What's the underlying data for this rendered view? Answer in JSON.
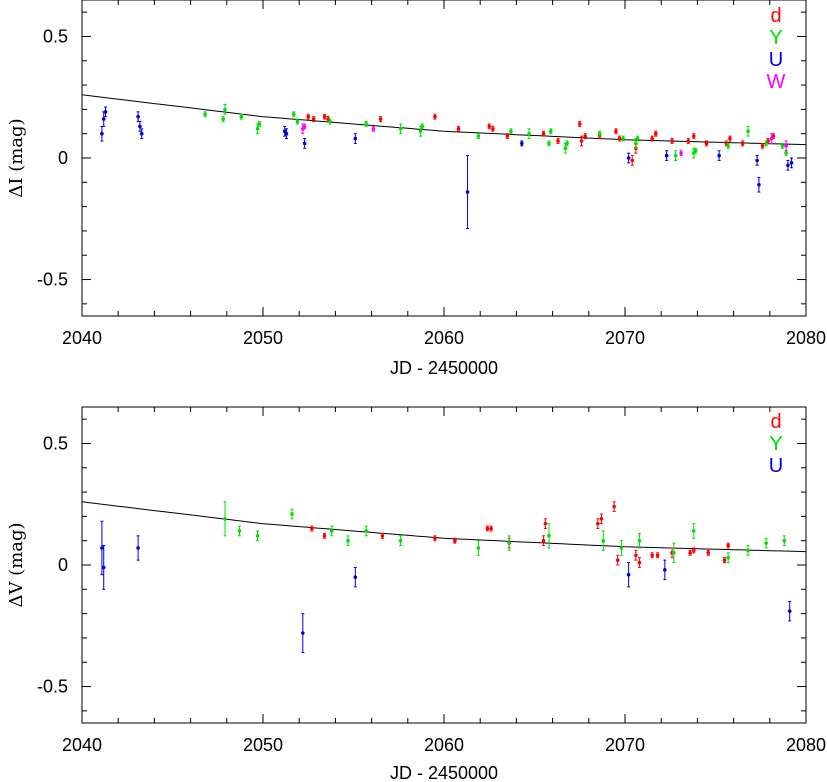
{
  "chart_data": [
    {
      "type": "scatter",
      "xlabel": "JD - 2450000",
      "ylabel": "ΔI (mag)",
      "xlim": [
        2040,
        2080
      ],
      "ylim": [
        -0.65,
        0.65
      ],
      "xticks": [
        "2040",
        "2050",
        "2060",
        "2070",
        "2080"
      ],
      "yticks": [
        "0.5",
        "0",
        "-0.5"
      ],
      "ytick_values": [
        0.5,
        0,
        -0.5
      ],
      "grid": false,
      "legend_position": "top-right",
      "fit_line": {
        "x": [
          2040,
          2050,
          2060,
          2070,
          2080
        ],
        "y": [
          0.26,
          0.17,
          0.11,
          0.075,
          0.055
        ]
      },
      "series": [
        {
          "name": "d",
          "color": "#ff0000",
          "points": [
            [
              2052.5,
              0.17,
              0.01
            ],
            [
              2052.8,
              0.16,
              0.01
            ],
            [
              2053.4,
              0.17,
              0.01
            ],
            [
              2053.6,
              0.16,
              0.01
            ],
            [
              2056.5,
              0.16,
              0.01
            ],
            [
              2059.5,
              0.17,
              0.01
            ],
            [
              2060.8,
              0.12,
              0.01
            ],
            [
              2062.5,
              0.13,
              0.01
            ],
            [
              2062.7,
              0.12,
              0.01
            ],
            [
              2063.5,
              0.09,
              0.01
            ],
            [
              2065.5,
              0.1,
              0.01
            ],
            [
              2066.3,
              0.07,
              0.01
            ],
            [
              2067.5,
              0.14,
              0.01
            ],
            [
              2067.6,
              0.07,
              0.02
            ],
            [
              2067.8,
              0.09,
              0.01
            ],
            [
              2068.6,
              0.09,
              0.01
            ],
            [
              2069.5,
              0.11,
              0.01
            ],
            [
              2069.7,
              0.08,
              0.01
            ],
            [
              2070.4,
              -0.01,
              0.02
            ],
            [
              2070.6,
              0.04,
              0.02
            ],
            [
              2071.5,
              0.08,
              0.01
            ],
            [
              2071.7,
              0.1,
              0.01
            ],
            [
              2072.6,
              0.07,
              0.01
            ],
            [
              2073.5,
              0.07,
              0.01
            ],
            [
              2073.8,
              0.09,
              0.01
            ],
            [
              2074.5,
              0.06,
              0.01
            ],
            [
              2075.6,
              0.06,
              0.01
            ],
            [
              2075.8,
              0.08,
              0.01
            ],
            [
              2076.5,
              0.06,
              0.01
            ],
            [
              2077.6,
              0.05,
              0.01
            ],
            [
              2077.9,
              0.07,
              0.01
            ],
            [
              2078.2,
              0.09,
              0.01
            ]
          ]
        },
        {
          "name": "Y",
          "color": "#00e000",
          "points": [
            [
              2046.8,
              0.18,
              0.01
            ],
            [
              2047.8,
              0.16,
              0.01
            ],
            [
              2047.9,
              0.2,
              0.02
            ],
            [
              2048.8,
              0.17,
              0.01
            ],
            [
              2049.7,
              0.12,
              0.02
            ],
            [
              2049.8,
              0.14,
              0.01
            ],
            [
              2051.7,
              0.18,
              0.01
            ],
            [
              2051.9,
              0.15,
              0.01
            ],
            [
              2053.7,
              0.15,
              0.01
            ],
            [
              2055.7,
              0.14,
              0.01
            ],
            [
              2057.6,
              0.12,
              0.02
            ],
            [
              2058.7,
              0.11,
              0.02
            ],
            [
              2058.8,
              0.13,
              0.01
            ],
            [
              2061.9,
              0.09,
              0.01
            ],
            [
              2063.7,
              0.11,
              0.01
            ],
            [
              2064.7,
              0.1,
              0.02
            ],
            [
              2065.8,
              0.06,
              0.01
            ],
            [
              2065.9,
              0.11,
              0.01
            ],
            [
              2066.7,
              0.04,
              0.02
            ],
            [
              2066.8,
              0.06,
              0.01
            ],
            [
              2068.6,
              0.1,
              0.01
            ],
            [
              2069.9,
              0.08,
              0.01
            ],
            [
              2070.6,
              0.06,
              0.02
            ],
            [
              2070.7,
              0.08,
              0.01
            ],
            [
              2072.8,
              0.01,
              0.02
            ],
            [
              2073.8,
              0.02,
              0.02
            ],
            [
              2073.9,
              0.03,
              0.01
            ],
            [
              2075.7,
              0.05,
              0.01
            ],
            [
              2076.8,
              0.11,
              0.02
            ],
            [
              2077.8,
              0.06,
              0.01
            ],
            [
              2078.7,
              0.05,
              0.01
            ],
            [
              2078.9,
              0.02,
              0.01
            ]
          ]
        },
        {
          "name": "U",
          "color": "#0000e0",
          "points": [
            [
              2041.1,
              0.1,
              0.03
            ],
            [
              2041.2,
              0.16,
              0.03
            ],
            [
              2041.3,
              0.19,
              0.02
            ],
            [
              2043.1,
              0.17,
              0.02
            ],
            [
              2043.2,
              0.13,
              0.02
            ],
            [
              2043.3,
              0.1,
              0.02
            ],
            [
              2051.2,
              0.11,
              0.02
            ],
            [
              2051.3,
              0.1,
              0.02
            ],
            [
              2052.3,
              0.06,
              0.02
            ],
            [
              2055.1,
              0.08,
              0.02
            ],
            [
              2061.3,
              -0.14,
              0.15
            ],
            [
              2064.3,
              0.06,
              0.01
            ],
            [
              2070.2,
              0.0,
              0.02
            ],
            [
              2072.3,
              0.01,
              0.02
            ],
            [
              2075.2,
              0.01,
              0.02
            ],
            [
              2077.3,
              -0.01,
              0.02
            ],
            [
              2077.4,
              -0.11,
              0.03
            ],
            [
              2079.0,
              -0.03,
              0.02
            ],
            [
              2079.2,
              -0.02,
              0.02
            ]
          ]
        },
        {
          "name": "W",
          "color": "#ff00ff",
          "points": [
            [
              2052.2,
              0.12,
              0.02
            ],
            [
              2052.3,
              0.13,
              0.01
            ],
            [
              2056.1,
              0.12,
              0.01
            ],
            [
              2073.1,
              0.02,
              0.01
            ],
            [
              2078.1,
              0.08,
              0.02
            ],
            [
              2078.9,
              0.05,
              0.02
            ]
          ]
        }
      ]
    },
    {
      "type": "scatter",
      "xlabel": "JD - 2450000",
      "ylabel": "ΔV (mag)",
      "xlim": [
        2040,
        2080
      ],
      "ylim": [
        -0.65,
        0.65
      ],
      "xticks": [
        "2040",
        "2050",
        "2060",
        "2070",
        "2080"
      ],
      "yticks": [
        "0.5",
        "0",
        "-0.5"
      ],
      "ytick_values": [
        0.5,
        0,
        -0.5
      ],
      "grid": false,
      "legend_position": "top-right",
      "fit_line": {
        "x": [
          2040,
          2050,
          2060,
          2070,
          2080
        ],
        "y": [
          0.26,
          0.17,
          0.11,
          0.075,
          0.055
        ]
      },
      "series": [
        {
          "name": "d",
          "color": "#ff0000",
          "points": [
            [
              2052.7,
              0.15,
              0.01
            ],
            [
              2053.4,
              0.12,
              0.01
            ],
            [
              2056.6,
              0.12,
              0.01
            ],
            [
              2059.5,
              0.11,
              0.01
            ],
            [
              2060.6,
              0.1,
              0.01
            ],
            [
              2062.4,
              0.15,
              0.01
            ],
            [
              2062.6,
              0.15,
              0.01
            ],
            [
              2063.6,
              0.09,
              0.02
            ],
            [
              2065.5,
              0.1,
              0.02
            ],
            [
              2065.6,
              0.17,
              0.02
            ],
            [
              2068.5,
              0.17,
              0.02
            ],
            [
              2068.7,
              0.19,
              0.02
            ],
            [
              2069.4,
              0.24,
              0.02
            ],
            [
              2069.6,
              0.02,
              0.02
            ],
            [
              2070.6,
              0.04,
              0.02
            ],
            [
              2070.8,
              0.01,
              0.02
            ],
            [
              2071.5,
              0.04,
              0.01
            ],
            [
              2071.8,
              0.04,
              0.01
            ],
            [
              2072.6,
              0.05,
              0.02
            ],
            [
              2073.6,
              0.05,
              0.01
            ],
            [
              2073.8,
              0.06,
              0.01
            ],
            [
              2074.6,
              0.05,
              0.01
            ],
            [
              2075.5,
              0.02,
              0.01
            ],
            [
              2075.7,
              0.08,
              0.01
            ]
          ]
        },
        {
          "name": "Y",
          "color": "#00e000",
          "points": [
            [
              2047.9,
              0.19,
              0.07
            ],
            [
              2048.7,
              0.14,
              0.02
            ],
            [
              2049.7,
              0.12,
              0.02
            ],
            [
              2051.6,
              0.21,
              0.02
            ],
            [
              2053.8,
              0.14,
              0.02
            ],
            [
              2054.7,
              0.1,
              0.02
            ],
            [
              2055.7,
              0.14,
              0.02
            ],
            [
              2057.6,
              0.1,
              0.02
            ],
            [
              2061.9,
              0.07,
              0.03
            ],
            [
              2063.6,
              0.09,
              0.03
            ],
            [
              2065.8,
              0.12,
              0.05
            ],
            [
              2068.8,
              0.1,
              0.04
            ],
            [
              2069.8,
              0.07,
              0.03
            ],
            [
              2070.8,
              0.1,
              0.03
            ],
            [
              2072.7,
              0.05,
              0.04
            ],
            [
              2073.8,
              0.14,
              0.03
            ],
            [
              2075.7,
              0.03,
              0.02
            ],
            [
              2076.8,
              0.06,
              0.02
            ],
            [
              2077.8,
              0.09,
              0.02
            ],
            [
              2078.8,
              0.1,
              0.02
            ]
          ]
        },
        {
          "name": "U",
          "color": "#0000e0",
          "points": [
            [
              2041.1,
              0.07,
              0.11
            ],
            [
              2041.2,
              -0.01,
              0.09
            ],
            [
              2043.1,
              0.07,
              0.05
            ],
            [
              2052.2,
              -0.28,
              0.08
            ],
            [
              2055.1,
              -0.05,
              0.04
            ],
            [
              2070.2,
              -0.04,
              0.05
            ],
            [
              2072.2,
              -0.02,
              0.04
            ],
            [
              2079.1,
              -0.19,
              0.04
            ]
          ]
        }
      ]
    }
  ]
}
